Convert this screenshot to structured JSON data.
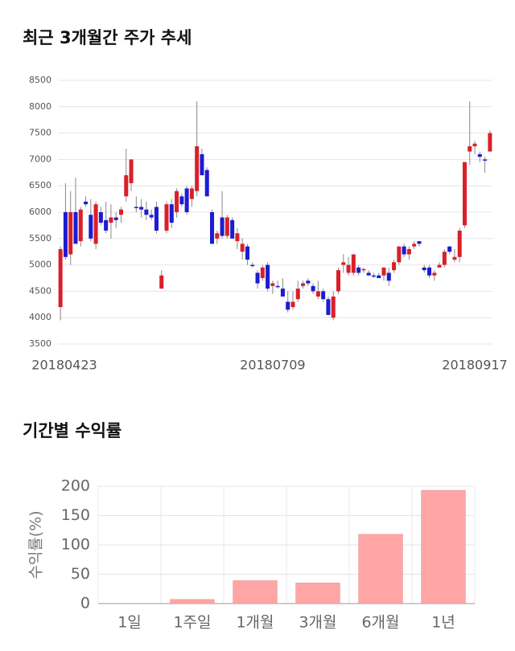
{
  "chart_data": [
    {
      "type": "candlestick",
      "title": "최근 3개월간 주가 추세",
      "categories": [
        "20180423",
        null,
        null,
        null,
        null,
        null,
        null,
        null,
        null,
        null,
        null,
        null,
        null,
        null,
        null,
        null,
        null,
        null,
        null,
        null,
        null,
        null,
        null,
        null,
        null,
        null,
        null,
        null,
        null,
        null,
        null,
        null,
        null,
        null,
        null,
        null,
        null,
        null,
        null,
        null,
        null,
        null,
        "20180709",
        null,
        null,
        null,
        null,
        null,
        null,
        null,
        null,
        null,
        null,
        null,
        null,
        null,
        null,
        null,
        null,
        null,
        null,
        null,
        null,
        null,
        null,
        null,
        null,
        null,
        null,
        null,
        null,
        null,
        null,
        null,
        null,
        null,
        null,
        null,
        null,
        null,
        null,
        null,
        "20180917",
        null,
        null,
        null
      ],
      "open": [
        4200,
        6000,
        5200,
        6000,
        5450,
        6200,
        5950,
        5400,
        6000,
        5850,
        5800,
        5900,
        5950,
        6300,
        6550,
        6100,
        6100,
        6050,
        5950,
        6100,
        4550,
        5650,
        6150,
        6000,
        6300,
        6450,
        6250,
        6400,
        7100,
        6800,
        6000,
        5500,
        5900,
        5550,
        5850,
        5450,
        5250,
        5350,
        5000,
        4850,
        4750,
        5000,
        4600,
        4600,
        4550,
        4300,
        4200,
        4350,
        4600,
        4700,
        4600,
        4400,
        4500,
        4350,
        4000,
        4500,
        5000,
        4850,
        4850,
        4950,
        4900,
        4850,
        4800,
        4800,
        4800,
        4850,
        4900,
        5050,
        5350,
        5200,
        5350,
        5450,
        4950,
        4950,
        4800,
        4950,
        5000,
        5350,
        5100,
        5150,
        5750,
        7150,
        7250,
        7100,
        7000,
        7150
      ],
      "high": [
        5350,
        6550,
        6400,
        6650,
        6100,
        6300,
        6250,
        6200,
        6100,
        6200,
        6150,
        6000,
        6100,
        7200,
        7000,
        6300,
        6250,
        6200,
        6050,
        6200,
        4900,
        6200,
        6250,
        6450,
        6350,
        6500,
        6500,
        8100,
        7200,
        6850,
        6050,
        5650,
        6400,
        5950,
        5900,
        5700,
        5500,
        5400,
        5050,
        4900,
        5000,
        5050,
        4700,
        4700,
        4750,
        4500,
        4500,
        4700,
        4700,
        4750,
        4650,
        4700,
        4550,
        4400,
        4500,
        4950,
        5200,
        5150,
        5200,
        5000,
        4950,
        4900,
        4850,
        4850,
        4950,
        4950,
        5100,
        5350,
        5400,
        5350,
        5450,
        5450,
        5000,
        5000,
        4900,
        5050,
        5300,
        5350,
        5300,
        5700,
        6950,
        8100,
        7350,
        7150,
        7050,
        7550
      ],
      "low": [
        3950,
        5100,
        5000,
        5400,
        5350,
        6100,
        5450,
        5300,
        5750,
        5600,
        5500,
        5700,
        5800,
        6200,
        6400,
        6000,
        5900,
        5850,
        5850,
        5600,
        4550,
        5600,
        5700,
        5900,
        6100,
        5950,
        6100,
        6300,
        6700,
        6300,
        5400,
        5400,
        5500,
        5500,
        5500,
        5300,
        5100,
        5000,
        4950,
        4550,
        4700,
        4500,
        4450,
        4550,
        4400,
        4100,
        4150,
        4300,
        4550,
        4600,
        4450,
        4350,
        4300,
        4050,
        3950,
        4450,
        4850,
        4800,
        4800,
        4800,
        4850,
        4800,
        4750,
        4750,
        4700,
        4600,
        4850,
        5000,
        5150,
        5100,
        5300,
        5350,
        4850,
        4750,
        4700,
        4950,
        4950,
        5200,
        5050,
        5050,
        5700,
        6900,
        7100,
        6950,
        6750,
        7150
      ],
      "close": [
        5300,
        5150,
        6000,
        5400,
        6050,
        6150,
        5500,
        6150,
        5800,
        5650,
        5900,
        5850,
        6050,
        6700,
        7000,
        6080,
        6050,
        5950,
        5900,
        5650,
        4800,
        6150,
        5800,
        6400,
        6150,
        6000,
        6450,
        7250,
        6700,
        6300,
        5400,
        5600,
        5550,
        5900,
        5500,
        5600,
        5400,
        5100,
        4980,
        4650,
        4950,
        4550,
        4650,
        4580,
        4400,
        4150,
        4300,
        4550,
        4650,
        4650,
        4500,
        4500,
        4350,
        4050,
        4400,
        4900,
        5050,
        5000,
        5200,
        4850,
        4920,
        4800,
        4780,
        4750,
        4950,
        4700,
        5050,
        5350,
        5200,
        5300,
        5400,
        5400,
        4900,
        4800,
        4850,
        5000,
        5250,
        5250,
        5150,
        5650,
        6950,
        7250,
        7300,
        7050,
        6980,
        7500
      ],
      "up_color": "#d9202a",
      "down_color": "#1c1cd0",
      "ylim": [
        3500,
        8500
      ],
      "yticks": [
        3500,
        4000,
        4500,
        5000,
        5500,
        6000,
        6500,
        7000,
        7500,
        8000,
        8500
      ],
      "grid": true
    },
    {
      "type": "bar",
      "title": "기간별 수익률",
      "ylabel": "수익률(%)",
      "categories": [
        "1일",
        "1주일",
        "1개월",
        "3개월",
        "6개월",
        "1년"
      ],
      "values": [
        0,
        7,
        39,
        35,
        118,
        193
      ],
      "color": "#ffa5a5",
      "ylim": [
        0,
        200
      ],
      "yticks": [
        0,
        50,
        100,
        150,
        200
      ],
      "grid": true
    }
  ]
}
